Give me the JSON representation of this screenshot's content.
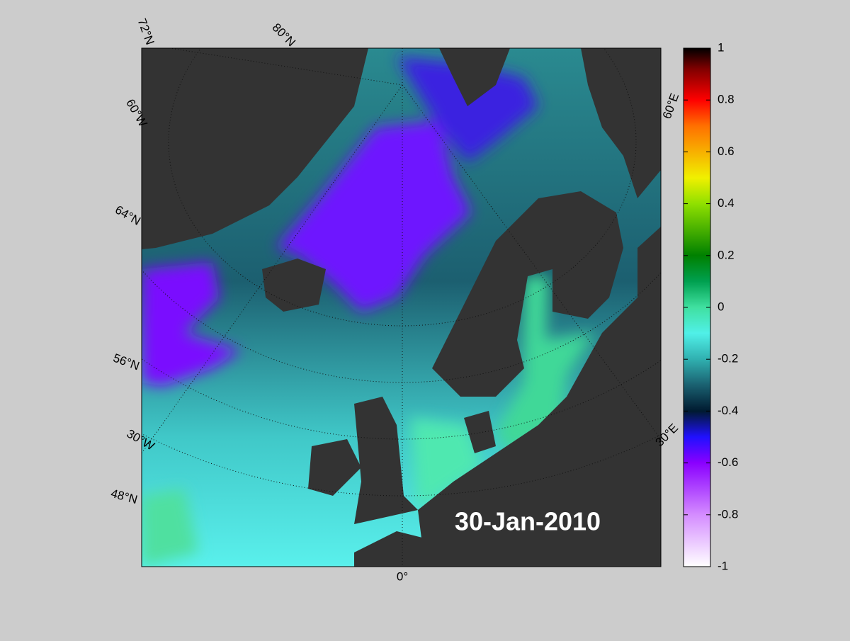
{
  "map": {
    "date_label": "30-Jan-2010",
    "graticule_labels": [
      "72°N",
      "80°N",
      "60°W",
      "64°N",
      "56°N",
      "30°W",
      "48°N",
      "0°",
      "60°E",
      "30°E"
    ]
  },
  "colorbar": {
    "lim": [
      -1,
      1
    ],
    "ticks": [
      1,
      0.8,
      0.6,
      0.4,
      0.2,
      0,
      -0.2,
      -0.4,
      -0.6,
      -0.8,
      -1
    ]
  }
}
